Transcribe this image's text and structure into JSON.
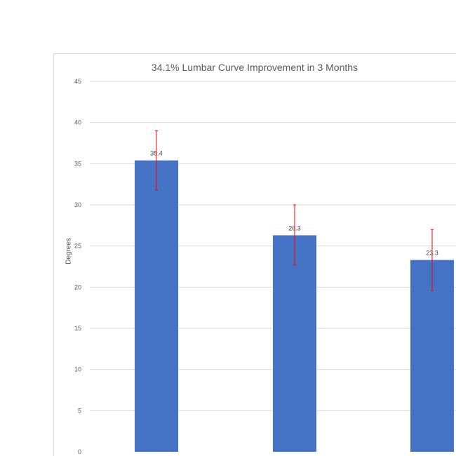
{
  "chart_data": {
    "type": "bar",
    "title": "34.1% Lumbar Curve Improvement in 3 Months",
    "ylabel": "Degrees",
    "xlabel": "",
    "categories": [
      "",
      "",
      ""
    ],
    "values": [
      35.4,
      26.3,
      23.3
    ],
    "data_labels": [
      "35.4",
      "26.3",
      "23.3"
    ],
    "error_bars": [
      {
        "low": 31.8,
        "high": 39.0
      },
      {
        "low": 22.7,
        "high": 30.0
      },
      {
        "low": 19.6,
        "high": 27.0
      }
    ],
    "ylim": [
      0,
      45
    ],
    "yticks": [
      "0",
      "5",
      "10",
      "15",
      "20",
      "25",
      "30",
      "35",
      "40",
      "45"
    ],
    "grid": true,
    "legend": "none",
    "colors": {
      "bar": "#4472c4",
      "error_bar": "#ff0000",
      "grid": "#d9d9d9"
    }
  }
}
